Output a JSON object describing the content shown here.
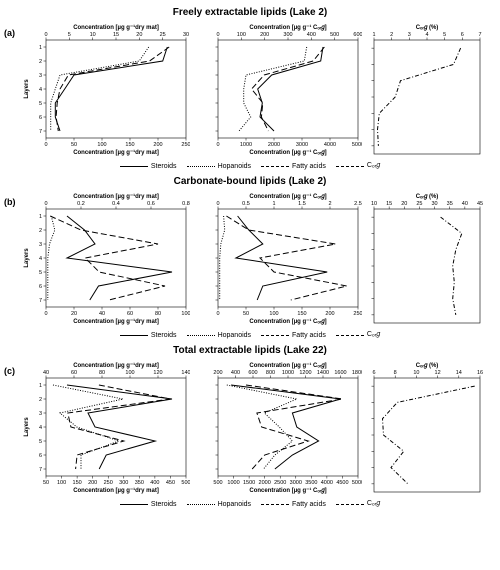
{
  "global": {
    "bg": "#ffffff",
    "line_color": "#000000",
    "font_family": "Arial",
    "title_fontsize": 10,
    "panel_label_fontsize": 9,
    "axis_label_fontsize": 6,
    "tick_label_fontsize": 5.5,
    "subplot_size": {
      "small_w": 170,
      "corg_w": 120,
      "h": 140
    }
  },
  "series_styles": {
    "steroids": {
      "stroke": "#000000",
      "dash": "none",
      "width": 1.0
    },
    "hopanoids": {
      "stroke": "#000000",
      "dash": "1 1.5",
      "width": 1.0
    },
    "fatty_acids": {
      "stroke": "#000000",
      "dash": "6 3",
      "width": 1.0
    },
    "corg": {
      "stroke": "#000000",
      "dash": "4 2 1 2",
      "width": 1.0
    }
  },
  "y_axis": {
    "label": "Layers",
    "ticks": [
      1,
      2,
      3,
      4,
      5,
      6,
      7
    ],
    "lim": [
      0.5,
      7.5
    ]
  },
  "sections": [
    {
      "id": "a",
      "title": "Freely extractable lipids (Lake 2)",
      "panels": [
        {
          "kind": "lipids",
          "top_label": "Concentration [µg g⁻¹dry mat]",
          "bottom_label": "Concentration [µg g⁻¹dry mat]",
          "top_ticks": [
            0,
            5,
            10,
            15,
            20,
            25,
            30
          ],
          "bottom_ticks": [
            0,
            50,
            100,
            150,
            200,
            250
          ],
          "series": {
            "steroids": [
              [
                26,
                1
              ],
              [
                25,
                2
              ],
              [
                6,
                3
              ],
              [
                4,
                4
              ],
              [
                2,
                5
              ],
              [
                2,
                6
              ],
              [
                3,
                7
              ]
            ],
            "hopanoids": [
              [
                22,
                1
              ],
              [
                20,
                2
              ],
              [
                3,
                3
              ],
              [
                2,
                4
              ],
              [
                1,
                5
              ],
              [
                1,
                6
              ],
              [
                1,
                7
              ]
            ],
            "fatty_acids": [
              [
                220,
                1
              ],
              [
                185,
                2
              ],
              [
                40,
                3
              ],
              [
                25,
                4
              ],
              [
                20,
                5
              ],
              [
                18,
                6
              ],
              [
                22,
                7
              ]
            ]
          },
          "fatty_axis": "bottom"
        },
        {
          "kind": "lipids",
          "top_label": "Concentration [µg g⁻¹ Cₒᵣ𝑔]",
          "bottom_label": "Concentration [µg g⁻¹ Cₒᵣ𝑔]",
          "top_ticks": [
            0,
            100,
            200,
            300,
            400,
            500,
            600
          ],
          "bottom_ticks": [
            0,
            1000,
            2000,
            3000,
            4000,
            5000
          ],
          "series": {
            "steroids": [
              [
                450,
                1
              ],
              [
                440,
                2
              ],
              [
                230,
                3
              ],
              [
                170,
                4
              ],
              [
                190,
                5
              ],
              [
                180,
                6
              ],
              [
                240,
                7
              ]
            ],
            "hopanoids": [
              [
                380,
                1
              ],
              [
                370,
                2
              ],
              [
                120,
                3
              ],
              [
                110,
                4
              ],
              [
                110,
                5
              ],
              [
                140,
                6
              ],
              [
                90,
                7
              ]
            ],
            "fatty_acids": [
              [
                3800,
                1
              ],
              [
                3400,
                2
              ],
              [
                1650,
                3
              ],
              [
                1200,
                4
              ],
              [
                1600,
                5
              ],
              [
                1550,
                6
              ],
              [
                1800,
                7
              ]
            ]
          },
          "fatty_axis": "bottom"
        },
        {
          "kind": "corg",
          "top_label": "Cₒᵣ𝑔 (%)",
          "top_ticks": [
            1,
            2,
            3,
            4,
            5,
            6,
            7
          ],
          "series": {
            "corg": [
              [
                5.9,
                1
              ],
              [
                5.5,
                2
              ],
              [
                2.5,
                3
              ],
              [
                2.2,
                4
              ],
              [
                1.3,
                5
              ],
              [
                1.2,
                6
              ],
              [
                1.25,
                7
              ]
            ]
          }
        }
      ],
      "legend": [
        "steroids",
        "hopanoids",
        "fatty_acids",
        "corg"
      ]
    },
    {
      "id": "b",
      "title": "Carbonate-bound lipids (Lake 2)",
      "panels": [
        {
          "kind": "lipids",
          "top_label": "Concentration [µg g⁻¹dry mat]",
          "bottom_label": "Concentration [µg g⁻¹dry mat]",
          "top_ticks": [
            0.0,
            0.2,
            0.4,
            0.6,
            0.8
          ],
          "bottom_ticks": [
            0,
            20,
            40,
            60,
            80,
            100
          ],
          "series": {
            "steroids": [
              [
                0.12,
                1
              ],
              [
                0.22,
                2
              ],
              [
                0.28,
                3
              ],
              [
                0.12,
                4
              ],
              [
                0.72,
                5
              ],
              [
                0.3,
                6
              ],
              [
                0.25,
                7
              ]
            ],
            "hopanoids": [
              [
                0.03,
                1
              ],
              [
                0.05,
                2
              ],
              [
                0.02,
                3
              ],
              [
                0.01,
                4
              ],
              [
                0.01,
                5
              ],
              [
                0.01,
                6
              ],
              [
                0.01,
                7
              ]
            ],
            "fatty_acids": [
              [
                3,
                1
              ],
              [
                25,
                2
              ],
              [
                80,
                3
              ],
              [
                28,
                4
              ],
              [
                38,
                5
              ],
              [
                85,
                6
              ],
              [
                45,
                7
              ]
            ]
          },
          "fatty_axis": "bottom"
        },
        {
          "kind": "lipids",
          "top_label": "Concentration [µg g⁻¹ Cₒᵣ𝑔]",
          "bottom_label": "Concentration [µg g⁻¹ Cₒᵣ𝑔]",
          "top_ticks": [
            0.0,
            0.5,
            1.0,
            1.5,
            2.0,
            2.5
          ],
          "bottom_ticks": [
            0,
            50,
            100,
            150,
            200,
            250
          ],
          "series": {
            "steroids": [
              [
                0.35,
                1
              ],
              [
                0.55,
                2
              ],
              [
                0.8,
                3
              ],
              [
                0.32,
                4
              ],
              [
                1.95,
                5
              ],
              [
                0.8,
                6
              ],
              [
                0.7,
                7
              ]
            ],
            "hopanoids": [
              [
                0.1,
                1
              ],
              [
                0.12,
                2
              ],
              [
                0.05,
                3
              ],
              [
                0.03,
                4
              ],
              [
                0.03,
                5
              ],
              [
                0.03,
                6
              ],
              [
                0.03,
                7
              ]
            ],
            "fatty_acids": [
              [
                15,
                1
              ],
              [
                55,
                2
              ],
              [
                210,
                3
              ],
              [
                75,
                4
              ],
              [
                100,
                5
              ],
              [
                230,
                6
              ],
              [
                130,
                7
              ]
            ]
          },
          "fatty_axis": "bottom"
        },
        {
          "kind": "corg",
          "top_label": "Cₒᵣ𝑔 (%)",
          "top_ticks": [
            10,
            15,
            20,
            25,
            30,
            35,
            40,
            45
          ],
          "series": {
            "corg": [
              [
                32,
                1
              ],
              [
                39,
                2
              ],
              [
                37,
                3
              ],
              [
                36,
                4
              ],
              [
                36.5,
                5
              ],
              [
                36,
                6
              ],
              [
                37,
                7
              ]
            ]
          }
        }
      ],
      "legend": [
        "steroids",
        "hopanoids",
        "fatty_acids",
        "corg"
      ]
    },
    {
      "id": "c",
      "title": "Total extractable lipids (Lake 22)",
      "panels": [
        {
          "kind": "lipids",
          "top_label": "Concentration [µg g⁻¹dry mat]",
          "bottom_label": "Concentration [µg g⁻¹dry mat]",
          "top_ticks": [
            40,
            60,
            80,
            100,
            120,
            140
          ],
          "bottom_ticks": [
            50,
            100,
            150,
            200,
            250,
            300,
            350,
            400,
            450,
            500
          ],
          "series": {
            "steroids": [
              [
                55,
                1
              ],
              [
                130,
                2
              ],
              [
                70,
                3
              ],
              [
                75,
                4
              ],
              [
                118,
                5
              ],
              [
                83,
                6
              ],
              [
                78,
                7
              ]
            ],
            "hopanoids": [
              [
                45,
                1
              ],
              [
                95,
                2
              ],
              [
                50,
                3
              ],
              [
                62,
                4
              ],
              [
                92,
                5
              ],
              [
                65,
                6
              ],
              [
                65,
                7
              ]
            ],
            "fatty_acids": [
              [
                220,
                1
              ],
              [
                450,
                2
              ],
              [
                120,
                3
              ],
              [
                130,
                4
              ],
              [
                300,
                5
              ],
              [
                150,
                6
              ],
              [
                145,
                7
              ]
            ]
          },
          "fatty_axis": "bottom"
        },
        {
          "kind": "lipids",
          "top_label": "Concentration [µg g⁻¹ Cₒᵣ𝑔]",
          "bottom_label": "Concentration [µg g⁻¹ Cₒᵣ𝑔]",
          "top_ticks": [
            200,
            400,
            600,
            800,
            1000,
            1200,
            1400,
            1600,
            1800
          ],
          "bottom_ticks": [
            500,
            1000,
            1500,
            2000,
            2500,
            3000,
            3500,
            4000,
            4500,
            5000
          ],
          "series": {
            "steroids": [
              [
                350,
                1
              ],
              [
                1600,
                2
              ],
              [
                1050,
                3
              ],
              [
                1100,
                4
              ],
              [
                1350,
                5
              ],
              [
                1050,
                6
              ],
              [
                850,
                7
              ]
            ],
            "hopanoids": [
              [
                300,
                1
              ],
              [
                1100,
                2
              ],
              [
                730,
                3
              ],
              [
                900,
                4
              ],
              [
                1050,
                5
              ],
              [
                850,
                6
              ],
              [
                720,
                7
              ]
            ],
            "fatty_acids": [
              [
                1400,
                1
              ],
              [
                4500,
                2
              ],
              [
                1750,
                3
              ],
              [
                1900,
                4
              ],
              [
                3400,
                5
              ],
              [
                2000,
                6
              ],
              [
                1600,
                7
              ]
            ]
          },
          "fatty_axis": "bottom"
        },
        {
          "kind": "corg",
          "top_label": "Cₒᵣ𝑔 (%)",
          "top_ticks": [
            6,
            8,
            10,
            12,
            14,
            16
          ],
          "series": {
            "corg": [
              [
                15.5,
                1
              ],
              [
                8.2,
                2
              ],
              [
                6.8,
                3
              ],
              [
                6.9,
                4
              ],
              [
                8.8,
                5
              ],
              [
                7.6,
                6
              ],
              [
                9.2,
                7
              ]
            ]
          }
        }
      ],
      "legend": [
        "steroids",
        "hopanoids",
        "fatty_acids",
        "corg"
      ]
    }
  ],
  "legend_labels": {
    "steroids": "Steroids",
    "hopanoids": "Hopanoids",
    "fatty_acids": "Fatty acids",
    "corg": "Cₒᵣ𝑔"
  }
}
